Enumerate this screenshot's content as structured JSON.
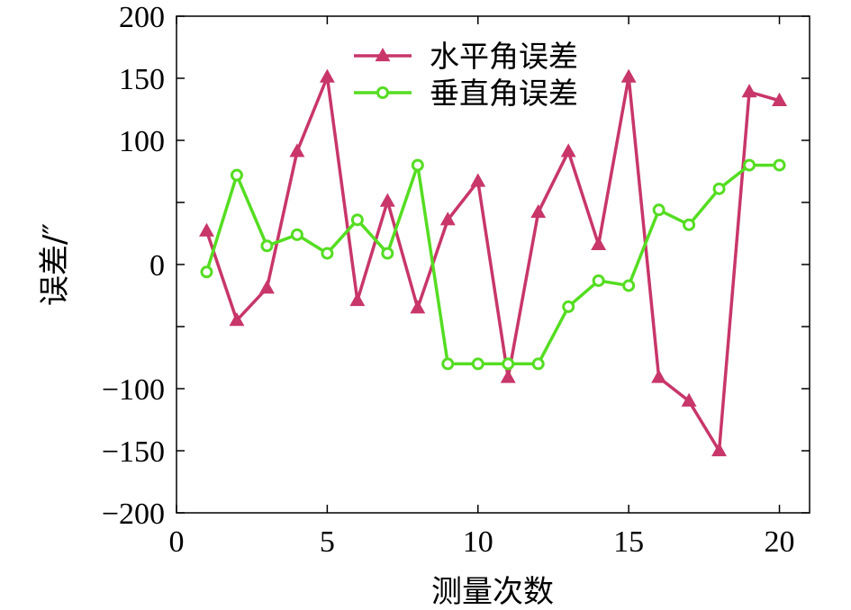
{
  "chart_data": {
    "type": "line",
    "title": "",
    "xlabel": "测量次数",
    "ylabel": "误差/″",
    "xlim": [
      0,
      21
    ],
    "ylim": [
      -200,
      200
    ],
    "x_ticks": [
      0,
      5,
      10,
      15,
      20
    ],
    "y_ticks": [
      -200,
      -150,
      -100,
      0,
      100,
      150,
      200
    ],
    "y_minor_ticks": [
      -50,
      50
    ],
    "x_minor_ticks": [],
    "grid": false,
    "legend_position": "top",
    "x": [
      1,
      2,
      3,
      4,
      5,
      6,
      7,
      8,
      9,
      10,
      11,
      12,
      13,
      14,
      15,
      16,
      17,
      18,
      19,
      20
    ],
    "series": [
      {
        "name": "水平角误差",
        "color": "#c8366a",
        "marker": "triangle",
        "values": [
          27,
          -45,
          -19,
          91,
          151,
          -29,
          51,
          -35,
          36,
          67,
          -91,
          42,
          91,
          16,
          151,
          -91,
          -110,
          -150,
          139,
          132
        ]
      },
      {
        "name": "垂直角误差",
        "color": "#55dd22",
        "marker": "circle",
        "values": [
          -6,
          72,
          15,
          24,
          9,
          36,
          9,
          80,
          -80,
          -80,
          -80,
          -80,
          -34,
          -13,
          -17,
          44,
          32,
          61,
          80,
          80
        ]
      }
    ]
  }
}
